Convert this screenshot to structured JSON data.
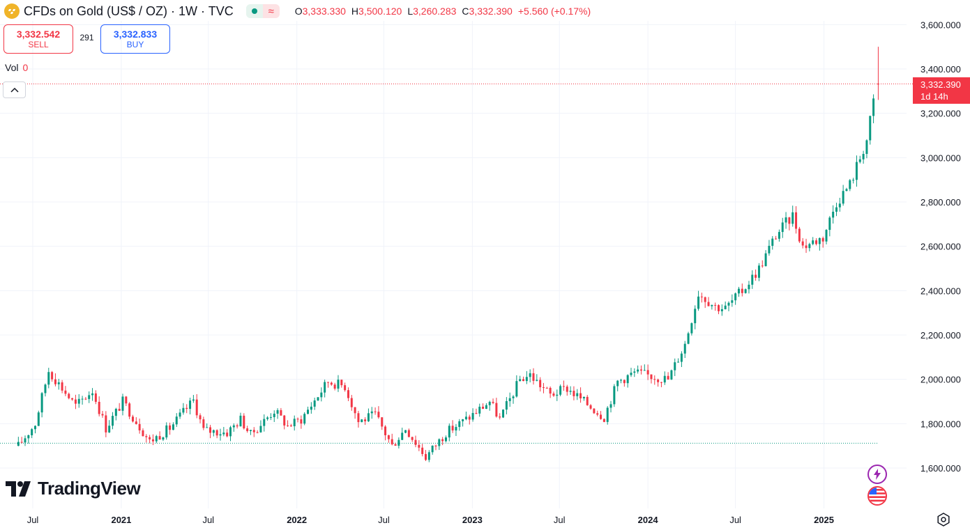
{
  "header": {
    "title": "CFDs on Gold (US$ / OZ) · 1W · TVC",
    "ohlc": [
      {
        "key": "O",
        "value": "3,333.330"
      },
      {
        "key": "H",
        "value": "3,500.120"
      },
      {
        "key": "L",
        "value": "3,260.283"
      },
      {
        "key": "C",
        "value": "3,332.390"
      }
    ],
    "change": "+5.560 (+0.17%)"
  },
  "trade": {
    "sell_price": "3,332.542",
    "sell_label": "SELL",
    "spread": "291",
    "buy_price": "3,332.833",
    "buy_label": "BUY"
  },
  "volume": {
    "label": "Vol",
    "value": "0"
  },
  "price_label": {
    "value": "3,332.390",
    "countdown": "1d 14h"
  },
  "brand": "TradingView",
  "colors": {
    "up": "#089981",
    "down": "#f23645",
    "accent": "#2962ff"
  },
  "chart_data": {
    "type": "candlestick",
    "x_tick_labels": [
      "Jul",
      "2021",
      "Jul",
      "2022",
      "Jul",
      "2023",
      "Jul",
      "2024",
      "Jul",
      "2025"
    ],
    "y_tick_labels": [
      "1,600.000",
      "1,800.000",
      "2,000.000",
      "2,200.000",
      "2,400.000",
      "2,600.000",
      "2,800.000",
      "3,000.000",
      "3,200.000",
      "3,400.000",
      "3,600.000"
    ],
    "ylim": [
      1600,
      3600
    ],
    "last_price": 3332.39,
    "reference_price": 1712,
    "last_candle": {
      "open": 3333.33,
      "high": 3500.12,
      "low": 3260.283,
      "close": 3332.39
    },
    "grid": true,
    "close_path": [
      [
        "2020-06-01",
        1700
      ],
      [
        "2020-07-06",
        1800
      ],
      [
        "2020-08-03",
        2040
      ],
      [
        "2020-09-28",
        1880
      ],
      [
        "2020-11-02",
        1950
      ],
      [
        "2020-11-30",
        1780
      ],
      [
        "2021-01-04",
        1900
      ],
      [
        "2021-03-01",
        1720
      ],
      [
        "2021-04-12",
        1780
      ],
      [
        "2021-05-31",
        1905
      ],
      [
        "2021-06-21",
        1770
      ],
      [
        "2021-08-09",
        1760
      ],
      [
        "2021-09-06",
        1820
      ],
      [
        "2021-09-27",
        1750
      ],
      [
        "2021-11-15",
        1860
      ],
      [
        "2021-12-13",
        1790
      ],
      [
        "2022-01-10",
        1820
      ],
      [
        "2022-02-28",
        1970
      ],
      [
        "2022-03-07",
        1990
      ],
      [
        "2022-04-11",
        1970
      ],
      [
        "2022-05-09",
        1810
      ],
      [
        "2022-06-13",
        1840
      ],
      [
        "2022-07-18",
        1700
      ],
      [
        "2022-08-15",
        1780
      ],
      [
        "2022-09-26",
        1650
      ],
      [
        "2022-11-07",
        1760
      ],
      [
        "2022-12-26",
        1830
      ],
      [
        "2023-02-06",
        1900
      ],
      [
        "2023-02-27",
        1820
      ],
      [
        "2023-04-10",
        2000
      ],
      [
        "2023-05-01",
        2020
      ],
      [
        "2023-06-12",
        1930
      ],
      [
        "2023-07-17",
        1960
      ],
      [
        "2023-08-21",
        1900
      ],
      [
        "2023-10-02",
        1830
      ],
      [
        "2023-10-30",
        1990
      ],
      [
        "2023-12-04",
        2030
      ],
      [
        "2024-02-12",
        2000
      ],
      [
        "2024-03-18",
        2160
      ],
      [
        "2024-04-15",
        2390
      ],
      [
        "2024-05-20",
        2330
      ],
      [
        "2024-06-10",
        2320
      ],
      [
        "2024-07-15",
        2400
      ],
      [
        "2024-08-19",
        2500
      ],
      [
        "2024-09-23",
        2650
      ],
      [
        "2024-10-28",
        2740
      ],
      [
        "2024-11-18",
        2600
      ],
      [
        "2024-12-30",
        2640
      ],
      [
        "2025-01-27",
        2800
      ],
      [
        "2025-02-24",
        2880
      ],
      [
        "2025-03-31",
        3080
      ],
      [
        "2025-04-14",
        3250
      ],
      [
        "2025-04-21",
        3332
      ]
    ]
  }
}
